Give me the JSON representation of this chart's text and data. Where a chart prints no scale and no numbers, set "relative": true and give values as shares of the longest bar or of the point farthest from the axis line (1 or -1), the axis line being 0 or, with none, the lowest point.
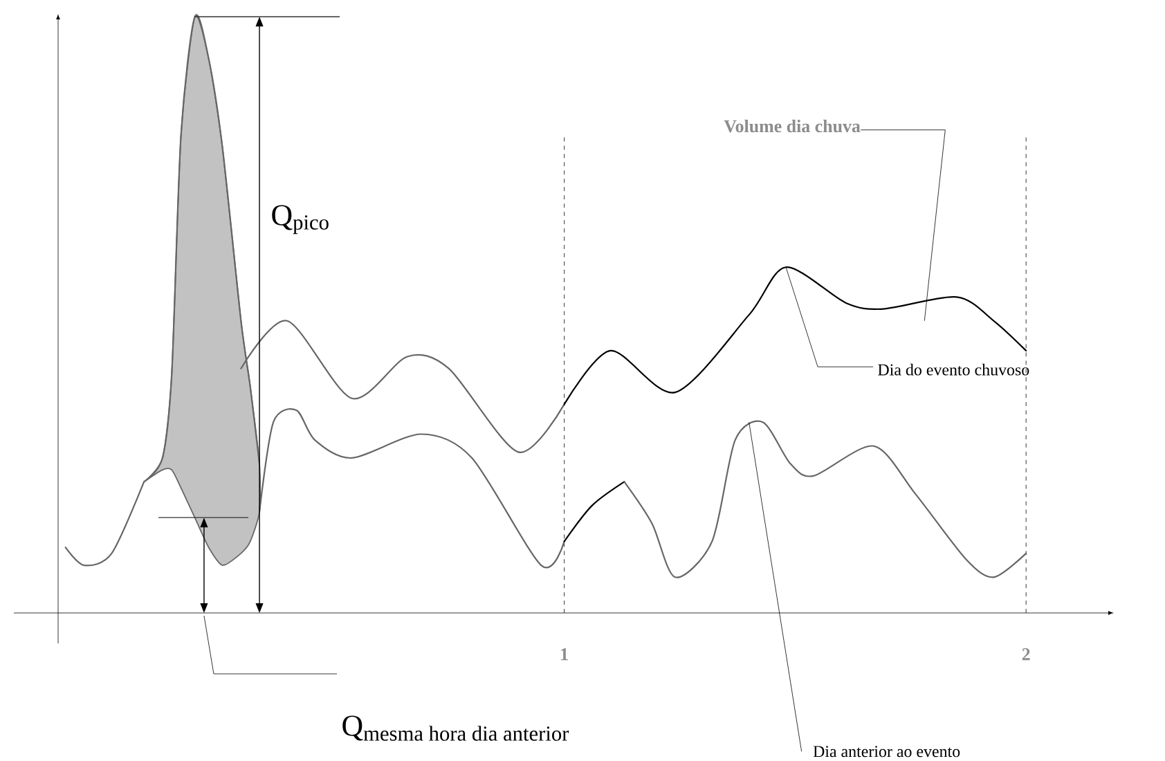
{
  "chart_data": {
    "type": "line",
    "relative": true,
    "xlim": [
      -0.096,
      2.19
    ],
    "xticks": [
      1,
      2
    ],
    "series": [
      {
        "color": "#666666",
        "x": [
          -0.08,
          -0.04,
          0.02,
          0.09
        ],
        "values": [
          0.11,
          0.08,
          0.1,
          0.22
        ]
      },
      {
        "color": "#666666",
        "x": [
          0.09,
          0.13,
          0.15,
          0.17,
          0.2,
          0.23,
          0.26,
          0.3,
          0.32,
          0.34
        ],
        "values": [
          0.22,
          0.26,
          0.4,
          0.8,
          1.0,
          0.93,
          0.78,
          0.49,
          0.38,
          0.25
        ],
        "lower": [
          0.22,
          0.24,
          0.24,
          0.21,
          0.16,
          0.11,
          0.08,
          0.1,
          0.12,
          0.17
        ],
        "upper": [
          0.22,
          0.26,
          0.4,
          0.8,
          1.0,
          0.93,
          0.78,
          0.49,
          0.38,
          0.25
        ]
      },
      {
        "color": "#666666",
        "x": [
          0.34,
          0.37,
          0.42,
          0.46,
          0.54,
          0.69,
          0.8,
          0.95,
          1.0
        ],
        "values": [
          0.17,
          0.32,
          0.34,
          0.29,
          0.26,
          0.3,
          0.26,
          0.08,
          0.12
        ]
      },
      {
        "color": "#000000",
        "x": [
          1.0,
          1.06,
          1.13
        ],
        "values": [
          0.12,
          0.18,
          0.22
        ]
      },
      {
        "color": "#666666",
        "x": [
          1.13,
          1.19,
          1.24,
          1.32,
          1.37,
          1.43,
          1.49,
          1.54,
          1.67,
          1.76,
          1.87,
          1.93,
          2.0
        ],
        "values": [
          0.22,
          0.15,
          0.06,
          0.12,
          0.29,
          0.32,
          0.25,
          0.23,
          0.28,
          0.2,
          0.09,
          0.06,
          0.1
        ]
      },
      {
        "color": "#666666",
        "x": [
          0.3,
          0.4,
          0.54,
          0.66,
          0.75,
          0.9,
          1.0
        ],
        "values": [
          0.41,
          0.49,
          0.36,
          0.43,
          0.41,
          0.27,
          0.35
        ]
      },
      {
        "color": "#000000",
        "x": [
          1.0,
          1.1,
          1.24,
          1.4,
          1.48,
          1.61,
          1.69,
          1.85,
          1.93,
          2.0
        ],
        "values": [
          0.35,
          0.44,
          0.37,
          0.5,
          0.58,
          0.52,
          0.51,
          0.53,
          0.49,
          0.44
        ]
      }
    ],
    "ref_lines": [
      {
        "axis": "x",
        "value": 1,
        "line_style": "dashed"
      },
      {
        "axis": "x",
        "value": 2,
        "line_style": "dashed"
      }
    ],
    "annotations": [
      "Q$_{pico}$",
      "Q$_{mesma hora dia anterior}$",
      "**Volume dia chuva**",
      "Dia do evento chuvoso",
      "Dia anterior ao evento"
    ]
  }
}
